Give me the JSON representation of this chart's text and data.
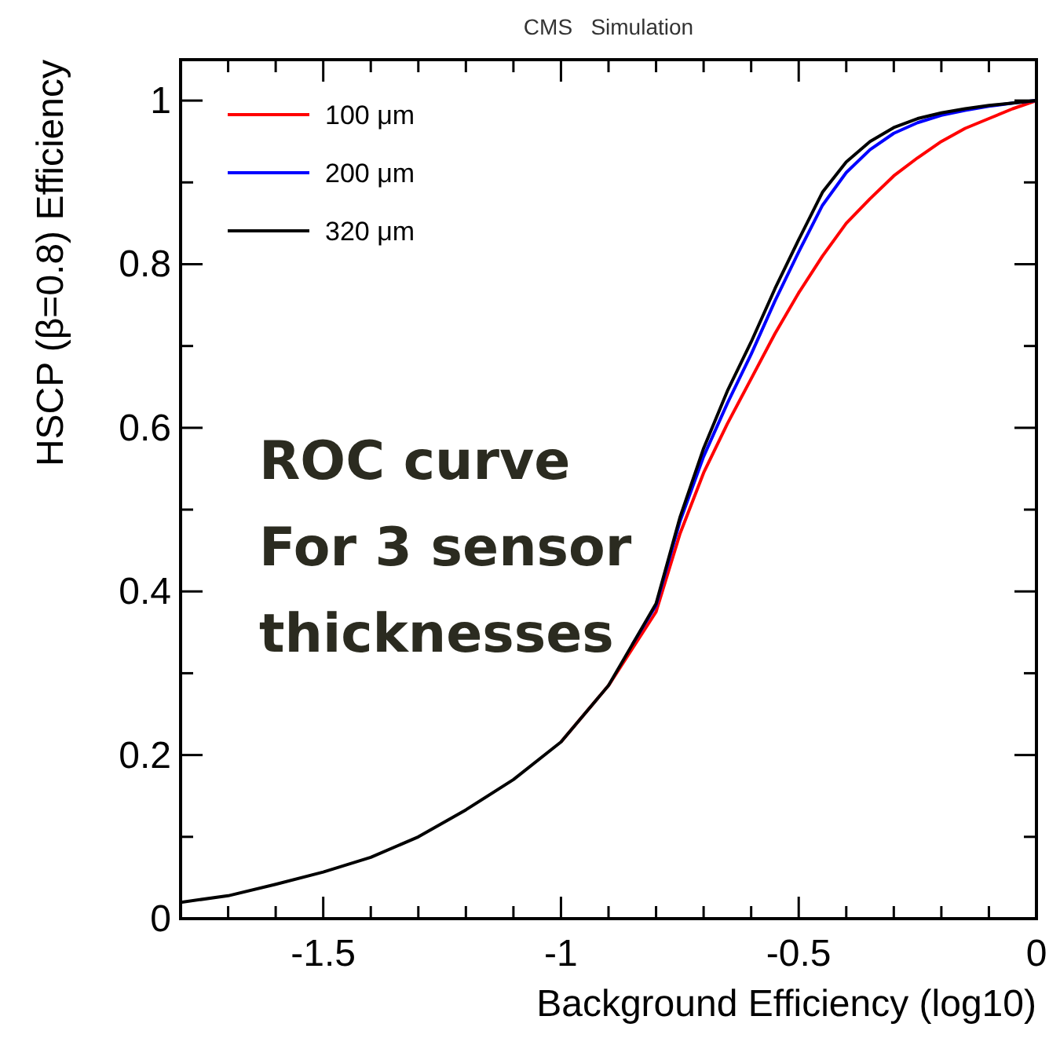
{
  "chart_data": {
    "type": "line",
    "title": "CMS   Simulation",
    "xlabel": "Background Efficiency (log10)",
    "ylabel": "HSCP (β=0.8) Efficiency",
    "x": [
      -1.8,
      -1.7,
      -1.6,
      -1.5,
      -1.4,
      -1.3,
      -1.2,
      -1.1,
      -1.0,
      -0.9,
      -0.85,
      -0.8,
      -0.75,
      -0.7,
      -0.65,
      -0.6,
      -0.55,
      -0.5,
      -0.45,
      -0.4,
      -0.35,
      -0.3,
      -0.25,
      -0.2,
      -0.15,
      -0.1,
      -0.05,
      0
    ],
    "series": [
      {
        "name": "100 μm",
        "color": "#ff0000",
        "values": [
          null,
          null,
          null,
          null,
          null,
          null,
          null,
          null,
          0.216,
          0.285,
          0.33,
          0.375,
          0.47,
          0.545,
          0.605,
          0.66,
          0.715,
          0.765,
          0.81,
          0.85,
          0.88,
          0.908,
          0.93,
          0.95,
          0.966,
          0.978,
          0.99,
          1
        ]
      },
      {
        "name": "200 μm",
        "color": "#0000ff",
        "values": [
          null,
          null,
          null,
          null,
          null,
          null,
          null,
          null,
          null,
          null,
          0.335,
          0.383,
          0.485,
          0.565,
          0.63,
          0.69,
          0.755,
          0.815,
          0.872,
          0.912,
          0.94,
          0.96,
          0.973,
          0.982,
          0.988,
          0.993,
          0.997,
          1
        ]
      },
      {
        "name": "320 μm",
        "color": "#000000",
        "values": [
          0.02,
          0.028,
          0.042,
          0.057,
          0.075,
          0.1,
          0.133,
          0.17,
          0.216,
          0.285,
          0.335,
          0.385,
          0.49,
          0.575,
          0.645,
          0.705,
          0.77,
          0.83,
          0.888,
          0.925,
          0.95,
          0.967,
          0.978,
          0.985,
          0.99,
          0.994,
          0.997,
          1
        ]
      }
    ],
    "xlim": [
      -1.8,
      0
    ],
    "ylim": [
      0,
      1.05
    ],
    "xticks": [
      {
        "value": -1.7,
        "label": null
      },
      {
        "value": -1.6,
        "label": null
      },
      -1.5,
      {
        "value": -1.4,
        "label": null
      },
      {
        "value": -1.3,
        "label": null
      },
      {
        "value": -1.2,
        "label": null
      },
      {
        "value": -1.1,
        "label": null
      },
      -1,
      {
        "value": -0.9,
        "label": null
      },
      {
        "value": -0.8,
        "label": null
      },
      {
        "value": -0.7,
        "label": null
      },
      {
        "value": -0.6,
        "label": null
      },
      -0.5,
      {
        "value": -0.4,
        "label": null
      },
      {
        "value": -0.3,
        "label": null
      },
      {
        "value": -0.2,
        "label": null
      },
      {
        "value": -0.1,
        "label": null
      },
      0
    ],
    "yticks": [
      0,
      {
        "value": 0.1,
        "label": null
      },
      0.2,
      {
        "value": 0.3,
        "label": null
      },
      0.4,
      {
        "value": 0.5,
        "label": null
      },
      0.6,
      {
        "value": 0.7,
        "label": null
      },
      0.8,
      {
        "value": 0.9,
        "label": null
      },
      1
    ],
    "legend": "top left",
    "grid": false,
    "marker": "none",
    "line_style": "solid",
    "annotations": [
      "ROC curve\nFor 3 sensor\nthicknesses"
    ]
  }
}
